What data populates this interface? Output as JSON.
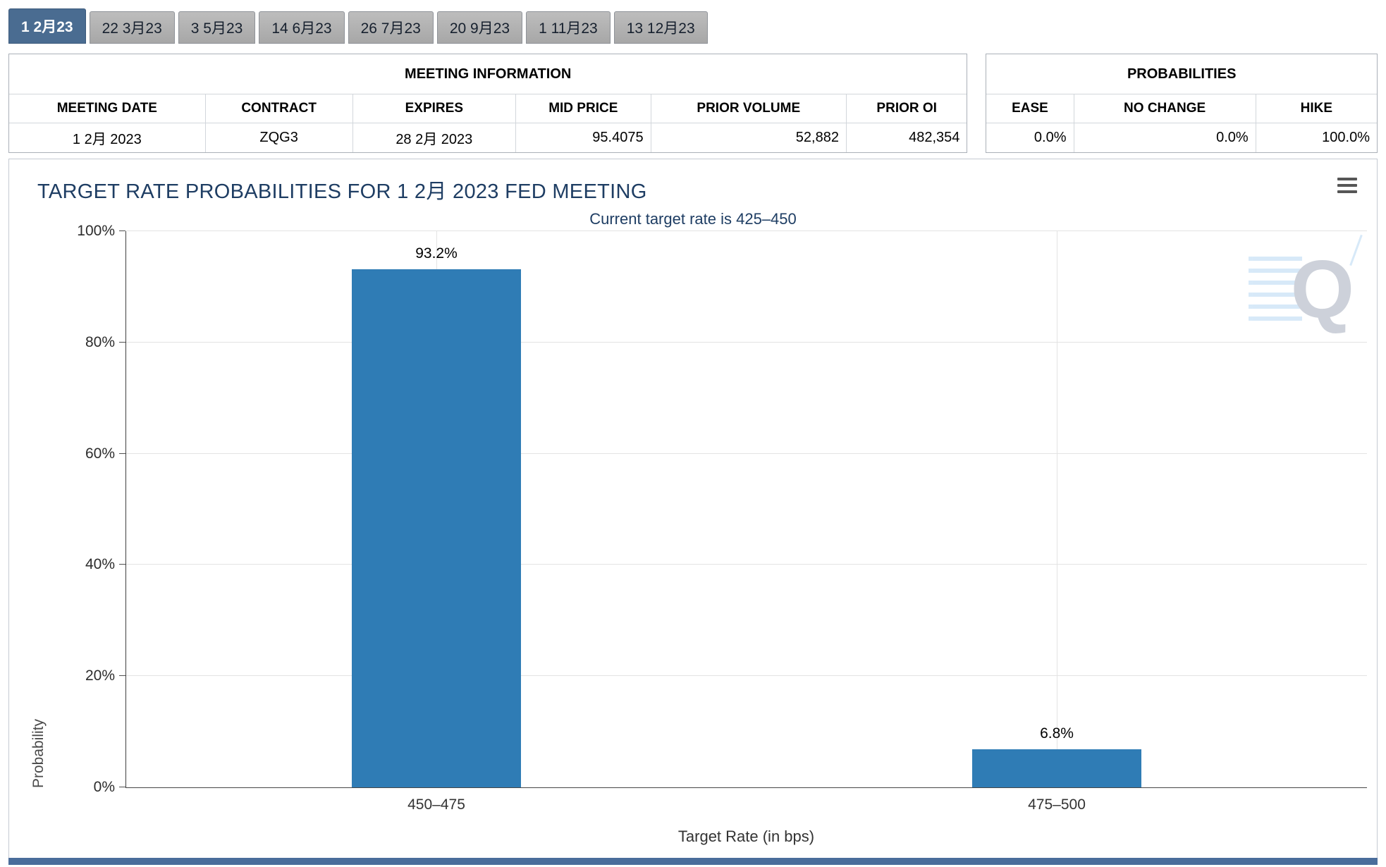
{
  "tabs": [
    {
      "label": "1 2月23",
      "selected": true
    },
    {
      "label": "22 3月23",
      "selected": false
    },
    {
      "label": "3 5月23",
      "selected": false
    },
    {
      "label": "14 6月23",
      "selected": false
    },
    {
      "label": "26 7月23",
      "selected": false
    },
    {
      "label": "20 9月23",
      "selected": false
    },
    {
      "label": "1 11月23",
      "selected": false
    },
    {
      "label": "13 12月23",
      "selected": false
    }
  ],
  "meeting_information": {
    "title": "MEETING INFORMATION",
    "columns": [
      "MEETING DATE",
      "CONTRACT",
      "EXPIRES",
      "MID PRICE",
      "PRIOR VOLUME",
      "PRIOR OI"
    ],
    "values": [
      "1 2月 2023",
      "ZQG3",
      "28 2月 2023",
      "95.4075",
      "52,882",
      "482,354"
    ]
  },
  "probabilities_table": {
    "title": "PROBABILITIES",
    "columns": [
      "EASE",
      "NO CHANGE",
      "HIKE"
    ],
    "values": [
      "0.0%",
      "0.0%",
      "100.0%"
    ]
  },
  "chart_data": {
    "type": "bar",
    "title": "TARGET RATE PROBABILITIES FOR 1 2月 2023 FED MEETING",
    "subtitle": "Current target rate is 425–450",
    "categories": [
      "450–475",
      "475–500"
    ],
    "values": [
      93.2,
      6.8
    ],
    "value_labels": [
      "93.2%",
      "6.8%"
    ],
    "xlabel": "Target Rate (in bps)",
    "ylabel": "Probability",
    "ylim": [
      0,
      100
    ],
    "ytick_labels": [
      "0%",
      "20%",
      "40%",
      "60%",
      "80%",
      "100%"
    ],
    "grid": true,
    "legend": "none",
    "bar_color": "#2f7cb5"
  },
  "watermark": {
    "letter": "Q"
  },
  "icons": {
    "chart_context_menu": "hamburger-menu-icon"
  },
  "colors": {
    "selected_tab": "#4a6c91",
    "inactive_tab": "#b3b1b1",
    "title_text": "#1e3d63",
    "bar": "#2f7cb5",
    "footer_strip": "#4a6d9b"
  }
}
